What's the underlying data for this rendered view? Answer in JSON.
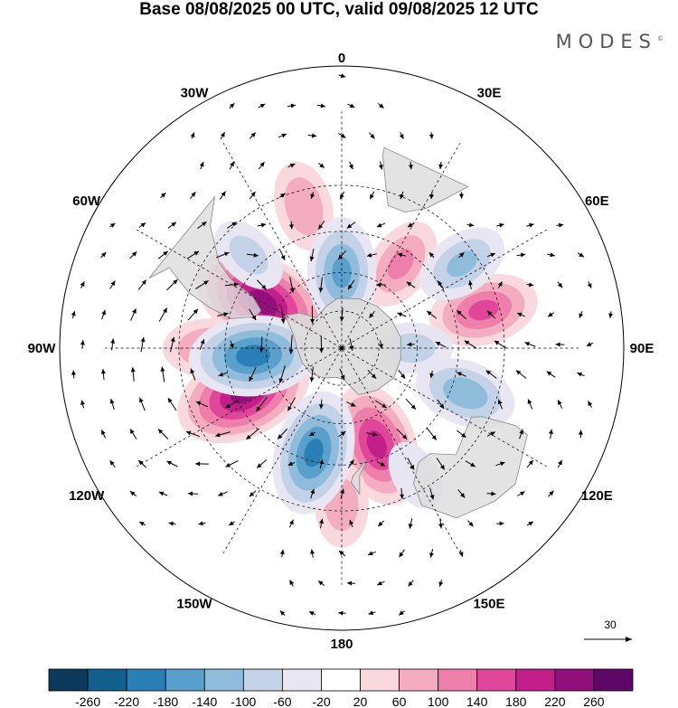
{
  "title": "Base 08/08/2025 00 UTC, valid 09/08/2025 12 UTC",
  "logo": {
    "text": "MODES",
    "mark": "©"
  },
  "longitude_labels": [
    {
      "lon": 0,
      "text": "0"
    },
    {
      "lon": 30,
      "text": "30E"
    },
    {
      "lon": 60,
      "text": "60E"
    },
    {
      "lon": 90,
      "text": "90E"
    },
    {
      "lon": 120,
      "text": "120E"
    },
    {
      "lon": 150,
      "text": "150E"
    },
    {
      "lon": 180,
      "text": "180"
    },
    {
      "lon": 210,
      "text": "150W"
    },
    {
      "lon": 240,
      "text": "120W"
    },
    {
      "lon": 270,
      "text": "90W"
    },
    {
      "lon": 300,
      "text": "60W"
    },
    {
      "lon": 330,
      "text": "30W"
    }
  ],
  "reference_vector": {
    "value": "30"
  },
  "colorbar": {
    "ticks": [
      "-260",
      "-220",
      "-180",
      "-140",
      "-100",
      "-60",
      "-20",
      "20",
      "60",
      "100",
      "140",
      "180",
      "220",
      "260"
    ],
    "colors": [
      "#0d3a5c",
      "#135f8e",
      "#2a7fb6",
      "#5aa0cc",
      "#90bcdc",
      "#c4d2e8",
      "#e8e6f2",
      "#ffffff",
      "#f9d8de",
      "#f4adc0",
      "#ee7fab",
      "#e0479b",
      "#c21f8a",
      "#930f7c",
      "#5f0766"
    ]
  },
  "anomaly_centers": [
    {
      "lat": -54,
      "lon": 300,
      "value": 240
    },
    {
      "lat": -48,
      "lon": 245,
      "value": 230
    },
    {
      "lat": -50,
      "lon": 160,
      "value": 190
    },
    {
      "lat": -35,
      "lon": 75,
      "value": 150
    },
    {
      "lat": -40,
      "lon": 270,
      "value": 110
    },
    {
      "lat": -35,
      "lon": 345,
      "value": 100
    },
    {
      "lat": -50,
      "lon": 35,
      "value": 110
    },
    {
      "lat": -32,
      "lon": 180,
      "value": 90
    },
    {
      "lat": -55,
      "lon": 265,
      "value": -200
    },
    {
      "lat": -48,
      "lon": 195,
      "value": -190
    },
    {
      "lat": -40,
      "lon": 110,
      "value": -130
    },
    {
      "lat": -35,
      "lon": 55,
      "value": -110
    },
    {
      "lat": -40,
      "lon": 315,
      "value": -80
    },
    {
      "lat": -60,
      "lon": 0,
      "value": -150
    },
    {
      "lat": -35,
      "lon": 150,
      "value": -60
    },
    {
      "lat": -62,
      "lon": 90,
      "value": -80
    }
  ]
}
